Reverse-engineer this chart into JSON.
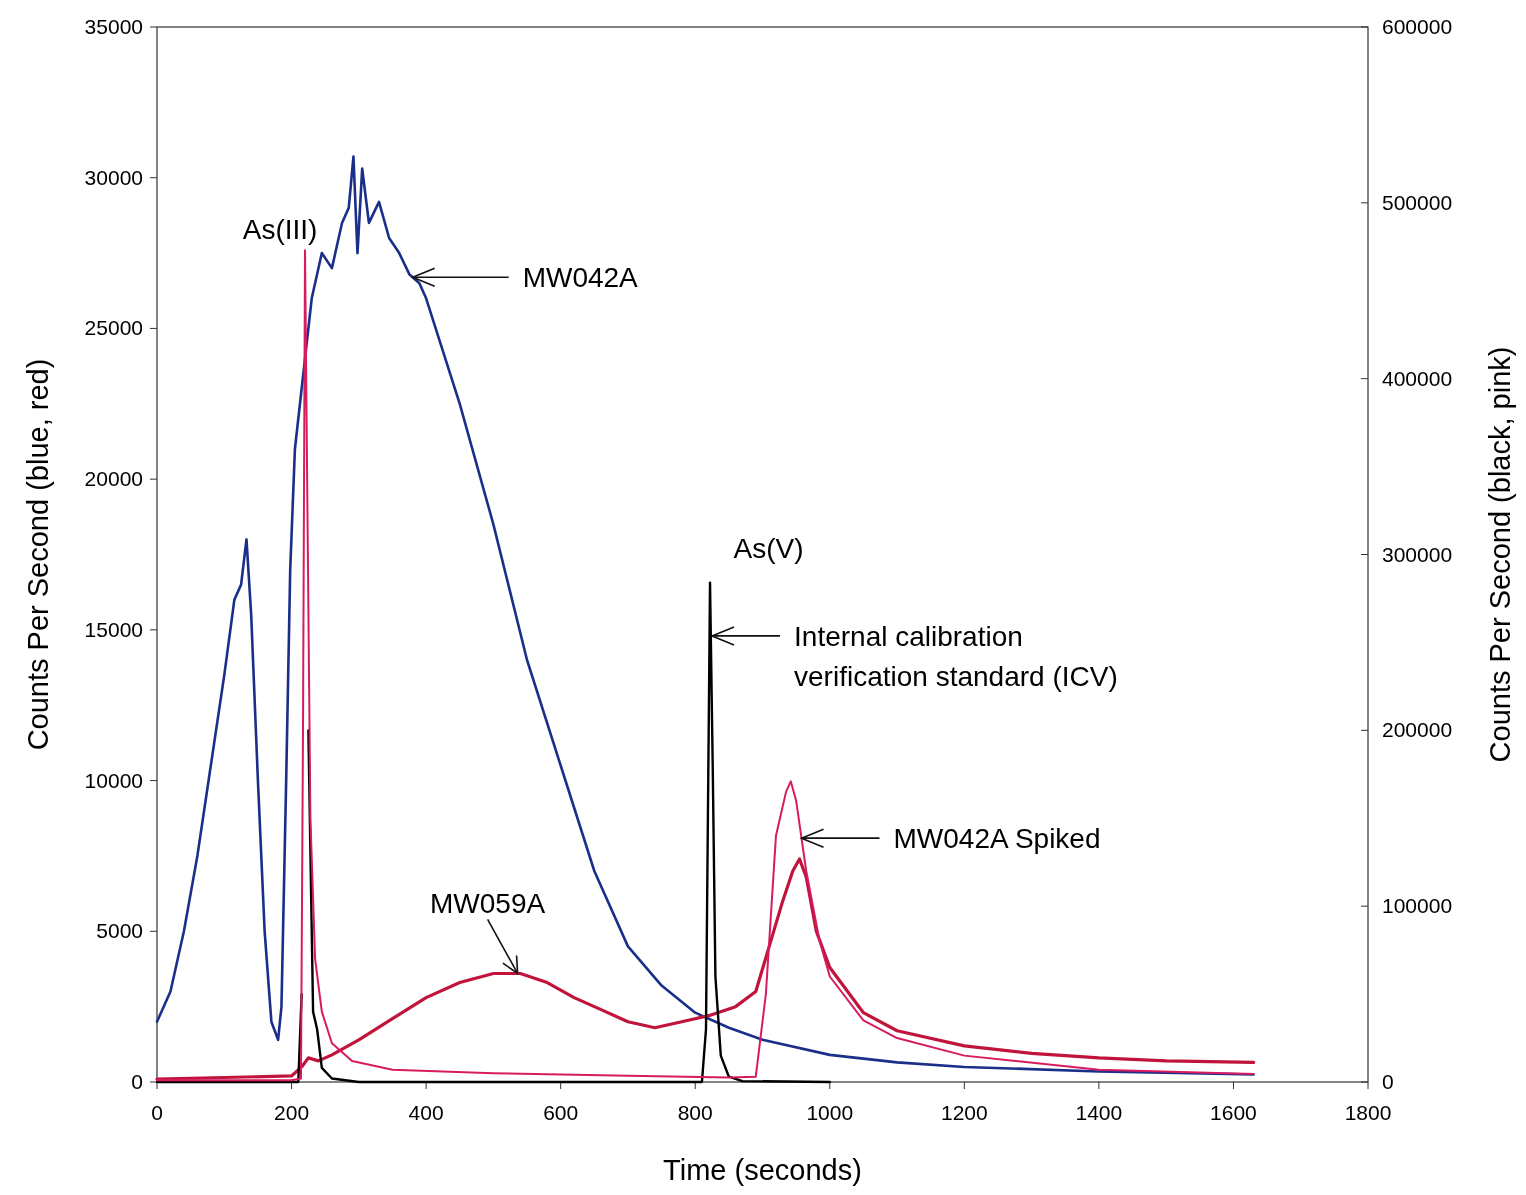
{
  "chart_data": {
    "type": "line",
    "xlabel": "Time (seconds)",
    "ylabel": "Counts Per Second (blue, red)",
    "y2label": "Counts Per Second (black, pink)",
    "xlim": [
      0,
      1800
    ],
    "xticks": [
      0,
      200,
      400,
      600,
      800,
      1000,
      1200,
      1400,
      1600,
      1800
    ],
    "ylim": [
      0,
      35000
    ],
    "yticks": [
      0,
      5000,
      10000,
      15000,
      20000,
      25000,
      30000,
      35000
    ],
    "y2lim": [
      0,
      600000
    ],
    "y2ticks": [
      0,
      100000,
      200000,
      300000,
      400000,
      500000,
      600000
    ],
    "grid": false,
    "marker": "none",
    "line_style": "solid",
    "series": [
      {
        "color": "#1a2f8a",
        "x": [
          0,
          20,
          40,
          60,
          80,
          100,
          115,
          125,
          133,
          140,
          150,
          160,
          170,
          180,
          185,
          192,
          198,
          205,
          215,
          230,
          245,
          260,
          275,
          285,
          292,
          298,
          305,
          315,
          330,
          345,
          360,
          375,
          390,
          400,
          450,
          500,
          550,
          600,
          650,
          700,
          750,
          800,
          850,
          900,
          1000,
          1100,
          1200,
          1400,
          1630
        ],
        "values": [
          2000,
          3000,
          5000,
          7500,
          10500,
          13500,
          16000,
          16500,
          18000,
          15500,
          10000,
          5000,
          2000,
          1400,
          2500,
          10000,
          17000,
          21000,
          23000,
          26000,
          27500,
          27000,
          28500,
          29000,
          30700,
          27500,
          30300,
          28500,
          29200,
          28000,
          27500,
          26800,
          26500,
          26000,
          22500,
          18500,
          14000,
          10500,
          7000,
          4500,
          3200,
          2300,
          1800,
          1400,
          900,
          650,
          500,
          350,
          250
        ]
      },
      {
        "color": "#c0143c",
        "x": [
          0,
          100,
          200,
          215,
          225,
          240,
          260,
          300,
          350,
          400,
          450,
          500,
          540,
          580,
          620,
          660,
          700,
          740,
          780,
          820,
          860,
          890,
          910,
          930,
          945,
          955,
          965,
          980,
          1000,
          1050,
          1100,
          1200,
          1300,
          1400,
          1500,
          1630
        ],
        "values": [
          100,
          150,
          200,
          500,
          800,
          700,
          900,
          1400,
          2100,
          2800,
          3300,
          3600,
          3600,
          3300,
          2800,
          2400,
          2000,
          1800,
          2000,
          2200,
          2500,
          3000,
          4500,
          6000,
          7000,
          7400,
          6800,
          5000,
          3800,
          2300,
          1700,
          1200,
          950,
          800,
          700,
          650
        ]
      },
      {
        "color": "#000000",
        "axis": "y2",
        "x": [
          0,
          210,
          215,
          220,
          225,
          232,
          238,
          245,
          260,
          300,
          810,
          816,
          822,
          826,
          830,
          838,
          850,
          870,
          1000
        ],
        "values": [
          0,
          0,
          50000,
          null,
          200000,
          40000,
          30000,
          8000,
          2000,
          0,
          0,
          30000,
          284000,
          180000,
          60000,
          15000,
          3000,
          500,
          0
        ]
      },
      {
        "color": "#d81b60",
        "axis": "y2",
        "x": [
          0,
          200,
          214,
          217,
          220,
          223,
          228,
          235,
          245,
          260,
          290,
          350,
          500,
          700,
          850,
          890,
          905,
          920,
          935,
          942,
          950,
          965,
          985,
          1000,
          1050,
          1100,
          1200,
          1400,
          1630
        ],
        "values": [
          1000,
          1000,
          2000,
          200000,
          473000,
          350000,
          150000,
          70000,
          40000,
          22000,
          12000,
          7000,
          5000,
          3500,
          2500,
          3000,
          50000,
          140000,
          165000,
          171000,
          160000,
          120000,
          80000,
          60000,
          35000,
          25000,
          15000,
          7000,
          4500
        ]
      }
    ],
    "annotations": [
      "As(III)",
      {
        "text": "MW042A",
        "x": 380,
        "y": 26700
      },
      "As(V)",
      {
        "text": "Internal calibration\nverification standard (ICV)",
        "x": 825,
        "y": 14800
      },
      {
        "text": "MW059A",
        "x": 536,
        "y": 3600
      },
      {
        "text": "MW042A Spiked",
        "x": 958,
        "y": 8090
      }
    ]
  }
}
